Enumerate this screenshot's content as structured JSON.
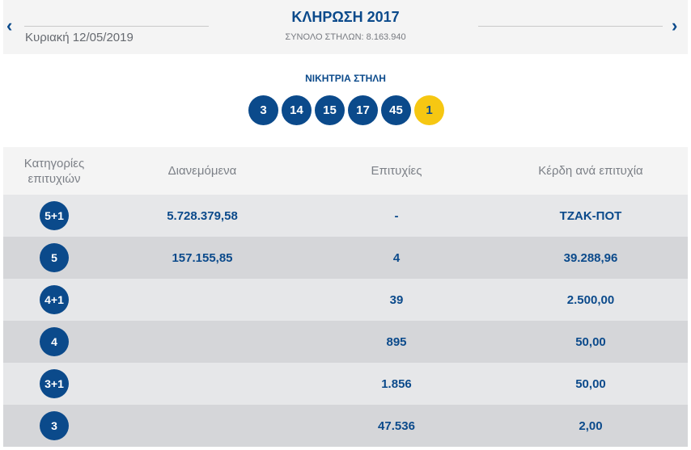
{
  "header": {
    "title": "ΚΛΗΡΩΣΗ 2017",
    "subtitle": "ΣΥΝΟΛΟ ΣΤΗΛΩΝ: 8.163.940",
    "date": "Κυριακή 12/05/2019",
    "prev_icon": "chevron-left-icon",
    "next_icon": "chevron-right-icon",
    "prev_glyph": "‹",
    "next_glyph": "›"
  },
  "winning": {
    "label": "ΝΙΚΗΤΡΙΑ ΣΤΗΛΗ",
    "numbers": [
      "3",
      "14",
      "15",
      "17",
      "45"
    ],
    "joker": "1"
  },
  "table": {
    "headers": [
      "Κατηγορίες επιτυχιών",
      "Διανεμόμενα",
      "Επιτυχίες",
      "Κέρδη ανά επιτυχία"
    ],
    "rows": [
      {
        "category": "5+1",
        "distributed": "5.728.379,58",
        "winners": "-",
        "prize": "ΤΖΑΚ-ΠΟΤ"
      },
      {
        "category": "5",
        "distributed": "157.155,85",
        "winners": "4",
        "prize": "39.288,96"
      },
      {
        "category": "4+1",
        "distributed": "",
        "winners": "39",
        "prize": "2.500,00"
      },
      {
        "category": "4",
        "distributed": "",
        "winners": "895",
        "prize": "50,00"
      },
      {
        "category": "3+1",
        "distributed": "",
        "winners": "1.856",
        "prize": "50,00"
      },
      {
        "category": "3",
        "distributed": "",
        "winners": "47.536",
        "prize": "2,00"
      }
    ]
  },
  "colors": {
    "primary": "#0b4a8b",
    "joker": "#f6c712",
    "header_bg": "#f4f4f4",
    "row_light": "#e6e7e9",
    "row_dark": "#d5d6d9"
  }
}
